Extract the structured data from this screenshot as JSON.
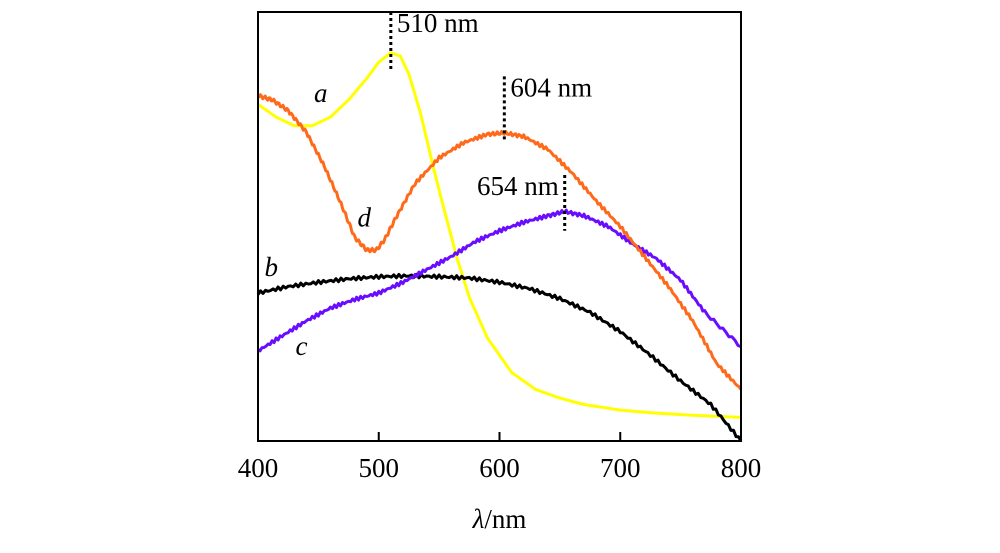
{
  "chart_data": {
    "type": "line",
    "title": "",
    "xlabel_symbol": "λ",
    "xlabel_unit": "/nm",
    "ylabel": "",
    "xlim": [
      400,
      800
    ],
    "ylim": [
      0,
      1
    ],
    "xticks": [
      400,
      500,
      600,
      700,
      800
    ],
    "grid": false,
    "series": [
      {
        "name": "a",
        "color": "#ffff00",
        "x": [
          400,
          415,
          430,
          445,
          460,
          475,
          490,
          500,
          510,
          518,
          525,
          535,
          545,
          555,
          565,
          575,
          590,
          610,
          630,
          650,
          670,
          700,
          730,
          760,
          800
        ],
        "y": [
          0.785,
          0.755,
          0.735,
          0.735,
          0.755,
          0.795,
          0.845,
          0.883,
          0.905,
          0.897,
          0.855,
          0.76,
          0.64,
          0.53,
          0.425,
          0.335,
          0.24,
          0.16,
          0.12,
          0.1,
          0.085,
          0.072,
          0.065,
          0.06,
          0.055
        ]
      },
      {
        "name": "b",
        "color": "#000000",
        "x": [
          400,
          425,
          450,
          475,
          500,
          525,
          550,
          575,
          600,
          625,
          650,
          675,
          700,
          725,
          750,
          775,
          800
        ],
        "y": [
          0.345,
          0.36,
          0.37,
          0.378,
          0.383,
          0.385,
          0.383,
          0.38,
          0.37,
          0.355,
          0.332,
          0.3,
          0.255,
          0.2,
          0.14,
          0.085,
          0.0
        ]
      },
      {
        "name": "c",
        "color": "#6a0dff",
        "x": [
          400,
          420,
          440,
          460,
          480,
          500,
          520,
          540,
          560,
          580,
          600,
          620,
          640,
          654,
          670,
          690,
          710,
          730,
          750,
          770,
          800
        ],
        "y": [
          0.21,
          0.245,
          0.28,
          0.31,
          0.33,
          0.345,
          0.37,
          0.4,
          0.43,
          0.465,
          0.49,
          0.51,
          0.525,
          0.535,
          0.525,
          0.5,
          0.46,
          0.425,
          0.375,
          0.3,
          0.22
        ]
      },
      {
        "name": "d",
        "color": "#ff6a1a",
        "x": [
          400,
          412,
          425,
          440,
          455,
          470,
          480,
          490,
          498,
          505,
          515,
          530,
          550,
          570,
          590,
          604,
          620,
          640,
          660,
          680,
          700,
          720,
          740,
          760,
          780,
          800
        ],
        "y": [
          0.805,
          0.795,
          0.77,
          0.72,
          0.64,
          0.545,
          0.475,
          0.445,
          0.445,
          0.47,
          0.525,
          0.6,
          0.66,
          0.695,
          0.715,
          0.718,
          0.71,
          0.68,
          0.625,
          0.56,
          0.5,
          0.43,
          0.36,
          0.28,
          0.18,
          0.12
        ]
      }
    ],
    "series_labels": [
      {
        "text": "a",
        "x": 452,
        "y": 0.79
      },
      {
        "text": "b",
        "x": 411,
        "y": 0.385
      },
      {
        "text": "c",
        "x": 436,
        "y": 0.2
      },
      {
        "text": "d",
        "x": 488,
        "y": 0.5
      }
    ],
    "annotations": [
      {
        "text": "510 nm",
        "x": 510,
        "y_top": 1.0,
        "y_bottom": 0.86
      },
      {
        "text": "604 nm",
        "x": 604,
        "y_top": 0.85,
        "y_bottom": 0.7
      },
      {
        "text": "654 nm",
        "x": 654,
        "y_top": 0.62,
        "y_bottom": 0.49
      }
    ]
  }
}
